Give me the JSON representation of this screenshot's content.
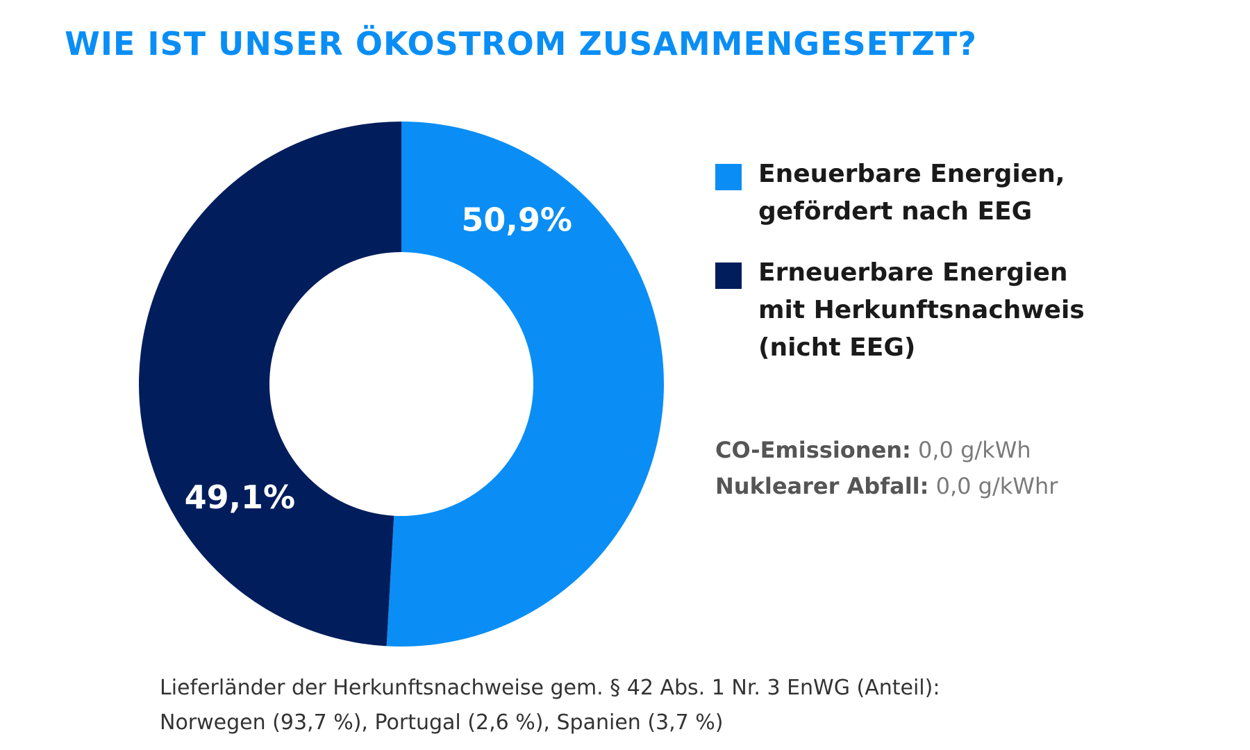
{
  "title": "WIE IST UNSER ÖKOSTROM ZUSAMMENGESETZT?",
  "chart_data": {
    "type": "pie",
    "title": "WIE IST UNSER ÖKOSTROM ZUSAMMENGESETZT?",
    "slices": [
      {
        "label": "Eneuerbare Energien, gefördert nach EEG",
        "value": 50.9,
        "value_label": "50,9%",
        "color": "#0a8ef5"
      },
      {
        "label": "Erneuerbare Energien mit Herkunftsnachweis (nicht EEG)",
        "value": 49.1,
        "value_label": "49,1%",
        "color": "#011d5c"
      }
    ],
    "legend_placement": "right",
    "donut": true
  },
  "legend": [
    {
      "label": "Eneuerbare Energien,\ngefördert nach EEG",
      "color": "#0a8ef5"
    },
    {
      "label": "Erneuerbare Energien\nmit Herkunftsnachweis\n(nicht EEG)",
      "color": "#011d5c"
    }
  ],
  "facts": [
    {
      "label": "CO-Emissionen:",
      "value": " 0,0 g/kWh"
    },
    {
      "label": "Nuklearer Abfall:",
      "value": " 0,0 g/kWhr"
    }
  ],
  "footnote": {
    "line1": "Lieferländer der Herkunftsnachweise gem. § 42 Abs. 1 Nr. 3 EnWG (Anteil):",
    "line2": "Norwegen (93,7 %), Portugal (2,6 %), Spanien (3,7 %)"
  }
}
